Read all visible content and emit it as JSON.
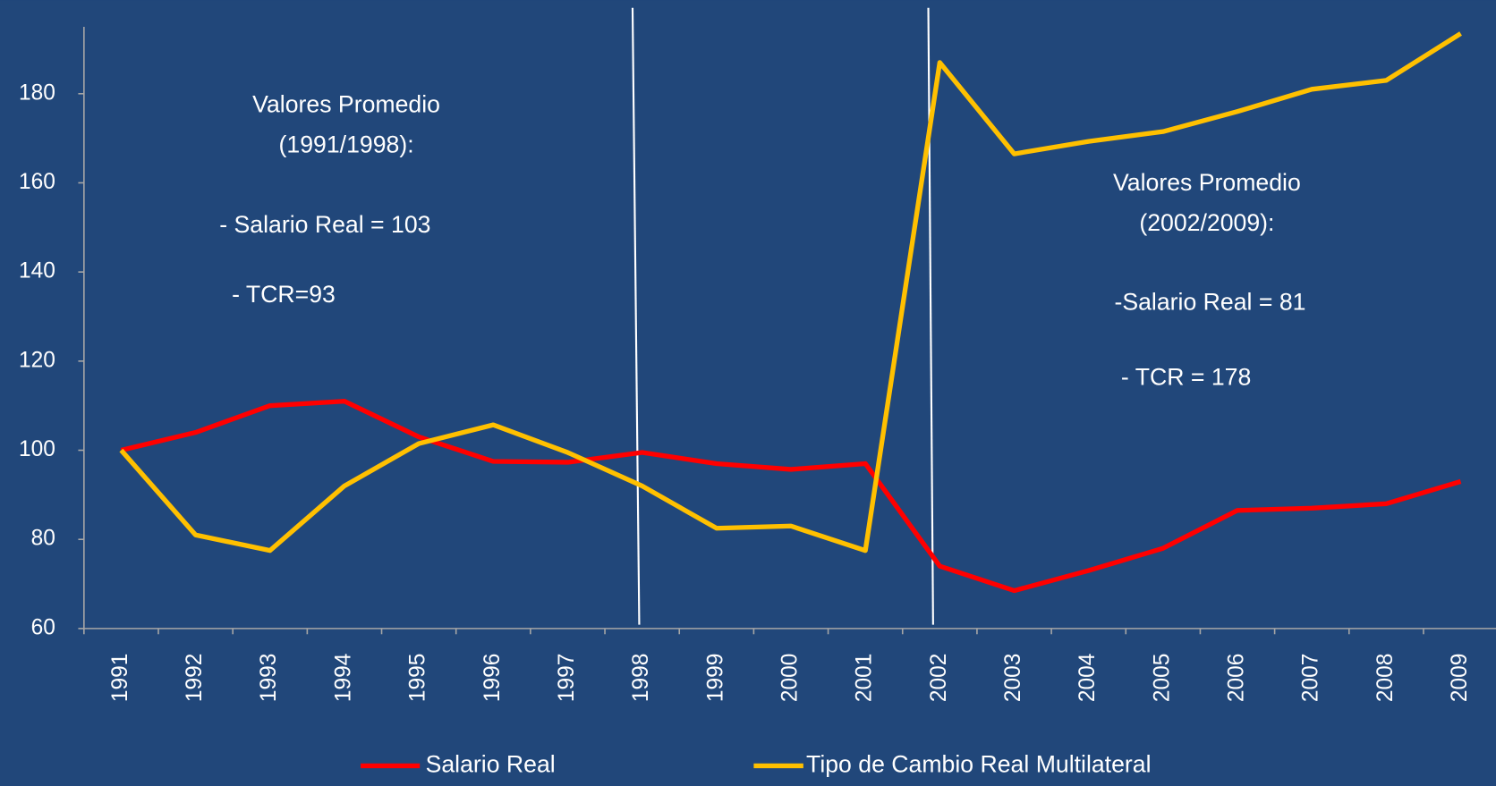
{
  "chart_data": {
    "type": "line",
    "categories": [
      "1991",
      "1992",
      "1993",
      "1994",
      "1995",
      "1996",
      "1997",
      "1998",
      "1999",
      "2000",
      "2001",
      "2002",
      "2003",
      "2004",
      "2005",
      "2006",
      "2007",
      "2008",
      "2009"
    ],
    "series": [
      {
        "name": "Salario Real",
        "color": "#ff0000",
        "values": [
          100,
          104,
          110,
          111,
          103,
          97.5,
          97.3,
          99.5,
          97,
          95.7,
          97,
          74,
          68.5,
          73,
          78,
          86.5,
          87,
          88,
          93
        ]
      },
      {
        "name": "Tipo de Cambio Real Multilateral",
        "color": "#ffc000",
        "values": [
          100,
          81,
          77.5,
          92,
          101.5,
          105.7,
          99.5,
          92,
          82.5,
          83,
          77.5,
          187,
          166.5,
          169.3,
          171.5,
          176,
          181,
          183,
          193.5
        ]
      }
    ],
    "ylim": [
      60,
      195
    ],
    "yticks": [
      60,
      80,
      100,
      120,
      140,
      160,
      180
    ],
    "legend": "bottom",
    "annotations": [
      [
        "Valores Promedio",
        "(1991/1998):",
        "- Salario Real = 103",
        "- TCR=93"
      ],
      [
        "Valores Promedio",
        "(2002/2009):",
        "-Salario Real = 81",
        "- TCR = 178"
      ]
    ]
  }
}
